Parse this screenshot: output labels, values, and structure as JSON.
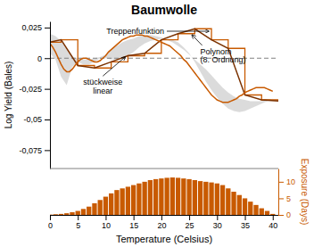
{
  "chart_data": [
    {
      "type": "line",
      "title": "Baumwolle",
      "ylabel": "Log Yield (Bales)",
      "xlim": [
        0,
        41
      ],
      "ylim": [
        -0.09,
        0.03
      ],
      "yticks": [
        {
          "value": 0.025,
          "label": "0,025"
        },
        0,
        {
          "value": -0.025,
          "label": "-0,025"
        },
        {
          "value": -0.05,
          "label": "-0,05"
        },
        {
          "value": -0.075,
          "label": "-0,075"
        }
      ],
      "tick_labels": "y",
      "grid": false,
      "series": [
        {
          "type": "area",
          "color": "#cccccc",
          "x": [
            0,
            1,
            2,
            3,
            4,
            5,
            6,
            7,
            8,
            9,
            10,
            11,
            12,
            13,
            14,
            15,
            16,
            17,
            18,
            19,
            20,
            21,
            22,
            23,
            24,
            25,
            26,
            27,
            28,
            29,
            30,
            31,
            32,
            33,
            34,
            35,
            36,
            37,
            38,
            39,
            40
          ],
          "upper": [
            0.02,
            0.018,
            0.014,
            0.007,
            0.001,
            0.0,
            -0.001,
            -0.001,
            0.0,
            0.001,
            0.003,
            0.007,
            0.01,
            0.013,
            0.015,
            0.016,
            0.018,
            0.019,
            0.019,
            0.018,
            0.017,
            0.015,
            0.013,
            0.01,
            0.007,
            0.003,
            -0.001,
            -0.005,
            -0.009,
            -0.014,
            -0.019,
            -0.024,
            -0.028,
            -0.031,
            -0.033,
            -0.034,
            -0.035,
            -0.035,
            -0.035,
            -0.034,
            -0.033
          ],
          "lower": [
            0.004,
            -0.001,
            -0.015,
            -0.022,
            -0.007,
            -0.003,
            -0.005,
            -0.005,
            -0.003,
            0.0,
            0.0,
            -0.001,
            -0.001,
            0.0,
            0.002,
            0.005,
            0.009,
            0.012,
            0.014,
            0.015,
            0.016,
            0.016,
            0.015,
            0.013,
            0.009,
            0.004,
            -0.003,
            -0.011,
            -0.019,
            -0.026,
            -0.032,
            -0.037,
            -0.041,
            -0.043,
            -0.044,
            -0.043,
            -0.041,
            -0.039,
            -0.037,
            -0.035,
            -0.033
          ]
        },
        {
          "type": "line",
          "line_style": "step",
          "color": "#C85A00",
          "x": [
            0,
            2,
            5,
            8,
            11,
            14,
            17,
            20,
            23,
            26,
            29,
            32,
            35,
            38,
            41
          ],
          "values": [
            0.013,
            0.015,
            -0.006,
            -0.008,
            -0.003,
            0.002,
            0.004,
            0.015,
            0.02,
            0.024,
            0.015,
            0.008,
            -0.03,
            -0.034,
            -0.035
          ]
        },
        {
          "type": "line",
          "line_style": "solid",
          "color": "#7B3200",
          "x": [
            0,
            2,
            5,
            8,
            11,
            14,
            17,
            20,
            23,
            26,
            29,
            32,
            35,
            38,
            41
          ],
          "values": [
            0.013,
            0.015,
            -0.006,
            -0.008,
            -0.003,
            0.002,
            0.004,
            0.015,
            0.02,
            0.024,
            0.015,
            0.008,
            -0.03,
            -0.034,
            -0.035
          ]
        },
        {
          "type": "line",
          "line_style": "solid",
          "color": "#C85A00",
          "x": [
            0.0,
            0.5,
            1.0,
            1.5,
            2.0,
            2.5,
            3.0,
            3.5,
            4.0,
            4.5,
            5.0,
            5.5,
            6.0,
            6.5,
            7.0,
            7.5,
            8.0,
            8.5,
            9.0,
            9.5,
            10.0,
            10.5,
            11.0,
            11.5,
            12.0,
            12.5,
            13.0,
            13.5,
            14.0,
            14.5,
            15.0,
            15.5,
            16.0,
            16.5,
            17.0,
            17.5,
            18.0,
            18.5,
            19.0,
            19.5,
            20.0,
            20.5,
            21.0,
            21.5,
            22.0,
            22.5,
            23.0,
            23.5,
            24.0,
            24.5,
            25.0,
            25.5,
            26.0,
            26.5,
            27.0,
            27.5,
            28.0,
            28.5,
            29.0,
            29.5,
            30.0,
            30.5,
            31.0,
            31.5,
            32.0,
            32.5,
            33.0,
            33.5,
            34.0,
            34.5,
            35.0,
            35.5,
            36.0,
            36.5,
            37.0,
            37.5,
            38.0,
            38.5,
            39.0,
            39.5,
            40.0
          ],
          "values": [
            0.012,
            0.009,
            0.005,
            0.0,
            -0.005,
            -0.009,
            -0.011,
            -0.011,
            -0.009,
            -0.006,
            -0.003,
            -0.001,
            0.0,
            0.0,
            -0.001,
            -0.002,
            -0.003,
            -0.003,
            -0.002,
            0.0,
            0.002,
            0.005,
            0.007,
            0.009,
            0.011,
            0.013,
            0.015,
            0.016,
            0.017,
            0.018,
            0.018,
            0.019,
            0.019,
            0.019,
            0.018,
            0.018,
            0.017,
            0.016,
            0.015,
            0.014,
            0.013,
            0.012,
            0.011,
            0.01,
            0.008,
            0.006,
            0.004,
            0.002,
            -0.001,
            -0.003,
            -0.006,
            -0.009,
            -0.012,
            -0.015,
            -0.018,
            -0.021,
            -0.024,
            -0.027,
            -0.03,
            -0.032,
            -0.034,
            -0.035,
            -0.036,
            -0.036,
            -0.036,
            -0.035,
            -0.034,
            -0.033,
            -0.031,
            -0.03,
            -0.028,
            -0.027,
            -0.026,
            -0.025,
            -0.024,
            -0.024,
            -0.024,
            -0.024,
            -0.025,
            -0.026,
            -0.027
          ]
        },
        {
          "type": "hline",
          "line_style": "dashed",
          "color": "gray",
          "values": [
            0
          ]
        }
      ],
      "annotations": [
        {
          "text": "Treppenfunktion",
          "xy": [
            28.5,
            0.022
          ],
          "xytext": [
            20.5,
            0.022
          ]
        },
        {
          "text": "stückweise\nlinear",
          "xy": [
            13.5,
            0.001
          ],
          "xytext": [
            9.5,
            -0.016
          ]
        },
        {
          "text": "Polynom\n(8. Ordnung)",
          "xy": [
            25.5,
            0.019
          ],
          "xytext": [
            27.0,
            0.009
          ]
        }
      ]
    },
    {
      "type": "bar",
      "xlabel": "Temperature (Celsius)",
      "ylabel": "Exposure (Days)",
      "xlim": [
        0,
        41
      ],
      "xticks": [
        0,
        5,
        10,
        15,
        20,
        25,
        30,
        35,
        40
      ],
      "ylim": [
        0,
        14
      ],
      "yticks": [
        0,
        5,
        10
      ],
      "grid": false,
      "color": "#C85A00",
      "x": [
        0,
        1,
        2,
        3,
        4,
        5,
        6,
        7,
        8,
        9,
        10,
        11,
        12,
        13,
        14,
        15,
        16,
        17,
        18,
        19,
        20,
        21,
        22,
        23,
        24,
        25,
        26,
        27,
        28,
        29,
        30,
        31,
        32,
        33,
        34,
        35,
        36,
        37,
        38,
        39,
        40
      ],
      "values": [
        0.1,
        0.2,
        0.3,
        0.5,
        0.8,
        1.2,
        1.8,
        2.5,
        3.5,
        4.5,
        5.5,
        6.5,
        7.5,
        8.0,
        8.5,
        9.0,
        9.5,
        10.0,
        10.5,
        10.8,
        11.0,
        11.2,
        11.3,
        11.2,
        11.0,
        10.8,
        10.5,
        10.2,
        10.0,
        9.8,
        9.5,
        9.0,
        8.0,
        7.0,
        6.0,
        5.0,
        4.0,
        3.0,
        2.0,
        1.2,
        0.3
      ]
    }
  ]
}
